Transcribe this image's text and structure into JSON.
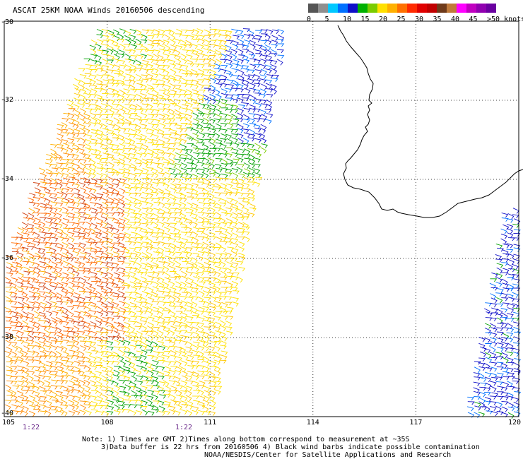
{
  "title": "ASCAT 25KM NOAA Winds 20160506 descending",
  "colorbar": {
    "labels": [
      "0",
      "5",
      "10",
      "15",
      "20",
      "25",
      "30",
      "35",
      "40",
      "45",
      ">50 knots"
    ],
    "colors": [
      "#555555",
      "#8f8f8f",
      "#00c8ff",
      "#0070ff",
      "#1010c8",
      "#00b000",
      "#7acc00",
      "#ffe000",
      "#ffb000",
      "#ff7000",
      "#ff2a00",
      "#e00000",
      "#c00000",
      "#6e3a1a",
      "#c07a3a",
      "#ff00ff",
      "#c000c0",
      "#9000b0",
      "#6a00a0"
    ]
  },
  "axes": {
    "lat_labels": [
      "-30",
      "-32",
      "-34",
      "-36",
      "-38",
      "-40"
    ],
    "lon_labels": [
      "105",
      "108",
      "111",
      "114",
      "117",
      "120"
    ],
    "lat_range": [
      -40,
      -30
    ],
    "lon_range": [
      105,
      120
    ]
  },
  "time_labels": [
    "1:22",
    "1:22"
  ],
  "notes": [
    "Note: 1) Times are GMT 2)Times along bottom correspond to measurement at ~35S",
    "3)Data buffer is 22 hrs from 20160506 4) Black wind barbs indicate possible contamination",
    "NOAA/NESDIS/Center for Satellite Applications and Research"
  ]
}
